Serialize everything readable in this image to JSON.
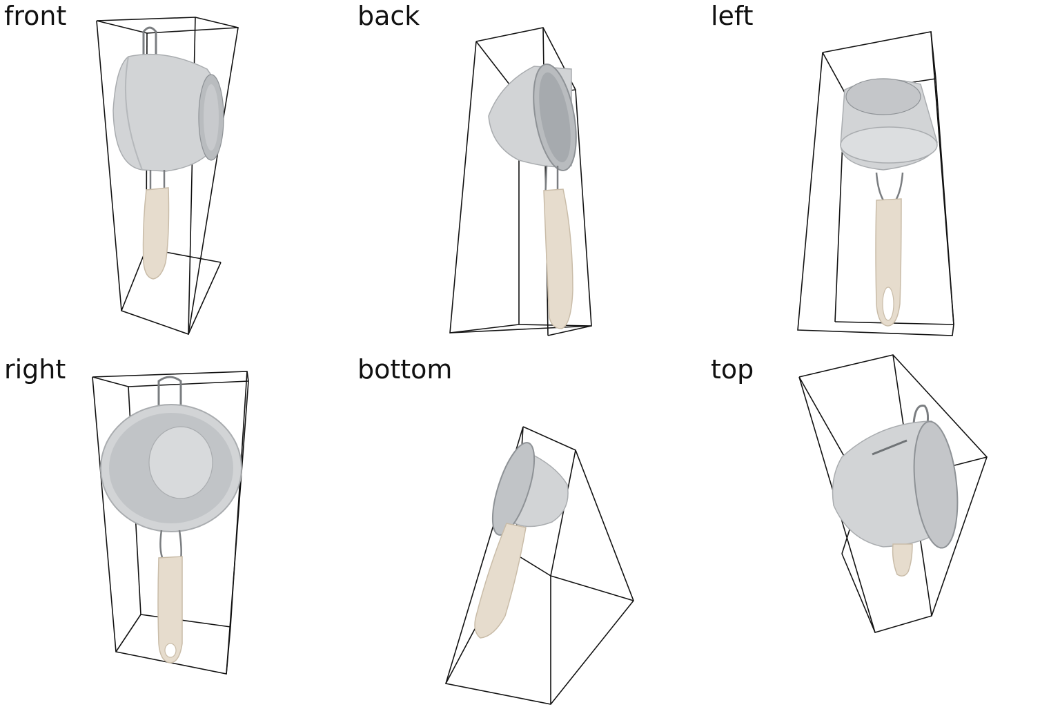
{
  "figure": {
    "views": [
      {
        "id": "front",
        "label": "front"
      },
      {
        "id": "back",
        "label": "back"
      },
      {
        "id": "left",
        "label": "left"
      },
      {
        "id": "right",
        "label": "right"
      },
      {
        "id": "bottom",
        "label": "bottom"
      },
      {
        "id": "top",
        "label": "top"
      }
    ],
    "colors": {
      "bowl": "#d2d4d6",
      "bowl_shadow": "#a9acaf",
      "mesh": "#8e9296",
      "handle": "#e6dccd",
      "handle_shadow": "#c9bca8",
      "wire": "#7a7d80",
      "box_line": "#111111",
      "label": "#111111",
      "background": "#ffffff"
    }
  }
}
